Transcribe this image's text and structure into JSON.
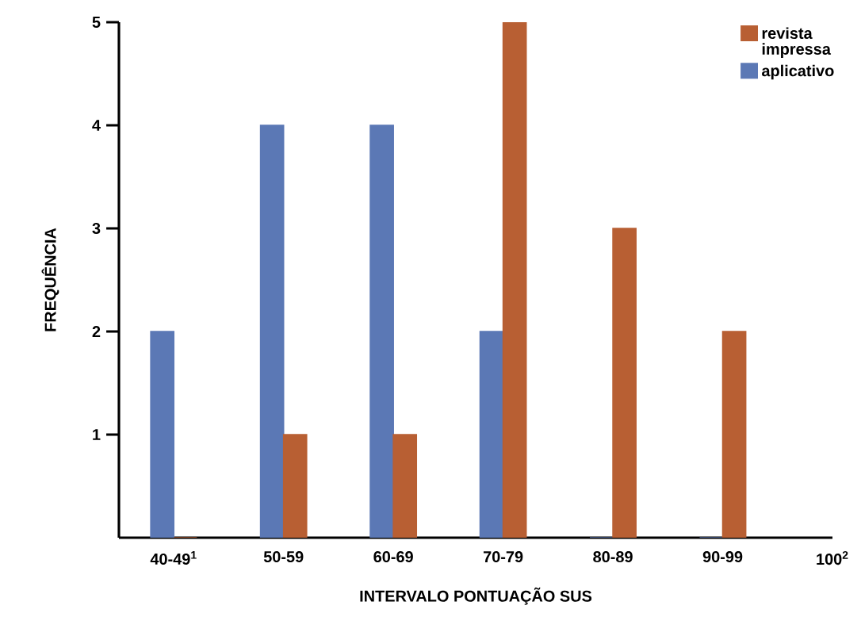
{
  "chart_data": {
    "type": "bar",
    "xlabel": "INTERVALO PONTUAÇÃO SUS",
    "ylabel": "FREQUÊNCIA",
    "categories": [
      "40-49$^{1}$",
      "50-59",
      "60-69",
      "70-79",
      "80-89",
      "90-99",
      "100$^{2}$"
    ],
    "series": [
      {
        "name": "aplicativo",
        "color": "#5b78b5",
        "values": [
          2,
          4,
          4,
          2,
          0,
          0,
          null
        ]
      },
      {
        "name": "revista impressa",
        "color": "#b85f33",
        "values": [
          0,
          1,
          1,
          5,
          3,
          2,
          null
        ]
      }
    ],
    "ylim": [
      0,
      5
    ],
    "yticks": [
      1,
      2,
      3,
      4,
      5
    ],
    "legend": "top right",
    "grid": false
  }
}
